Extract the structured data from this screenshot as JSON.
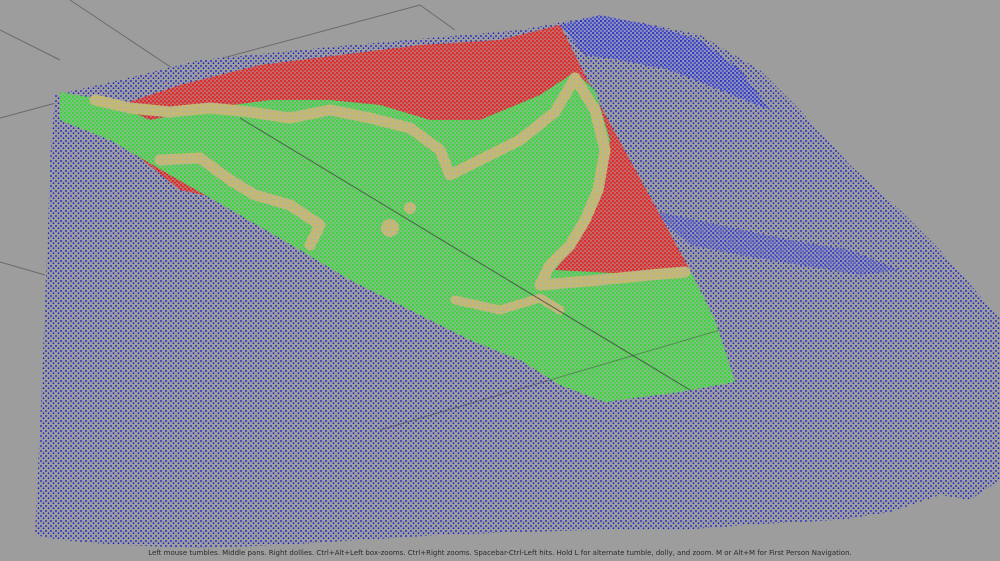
{
  "viewport": {
    "background_color": "#9d9d9d",
    "grid_color": "#6a6a6a",
    "point_colors": {
      "terrain": "#0a14d2",
      "upper_zone": "#e81515",
      "middle_zone": "#25dd25",
      "boundary": "#cdbf4e"
    }
  },
  "status": {
    "help_text": "Left mouse tumbles. Middle pans. Right dollies. Ctrl+Alt+Left box-zooms. Ctrl+Right zooms. Spacebar-Ctrl-Left hits. Hold L for alternate tumble, dolly, and zoom.    M or Alt+M for First Person Navigation."
  }
}
